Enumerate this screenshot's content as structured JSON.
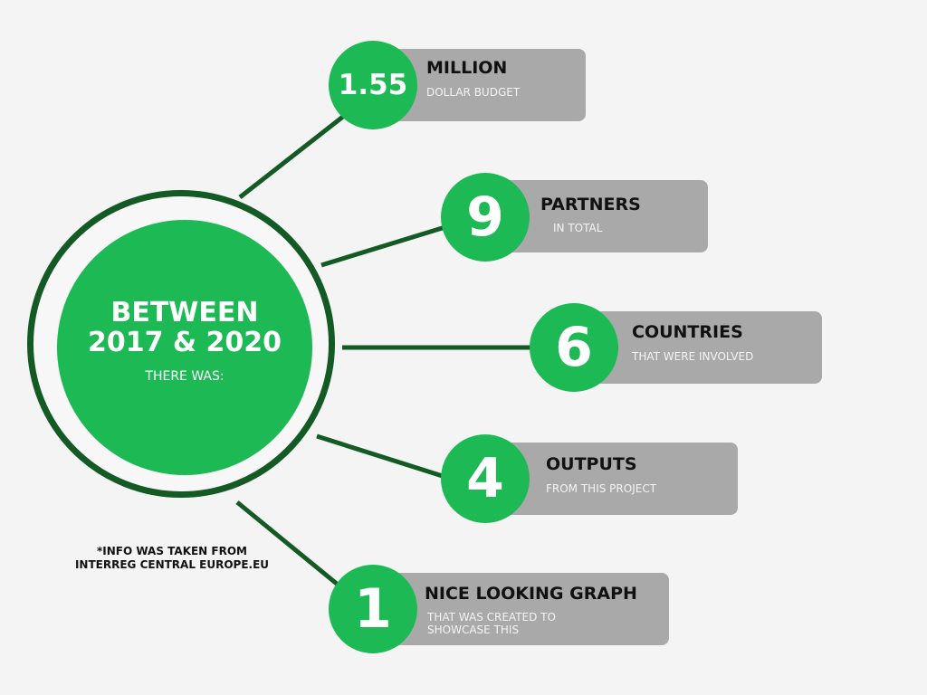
{
  "colors": {
    "background": "#f4f4f4",
    "accent_green": "#1db954",
    "dark_green": "#135a24",
    "card_gray": "#a9a9a9"
  },
  "hub": {
    "line1": "BETWEEN",
    "line2": "2017 & 2020",
    "subtitle": "THERE WAS:"
  },
  "items": [
    {
      "number": "1.55",
      "title": "MILLION",
      "subtitle": "DOLLAR BUDGET"
    },
    {
      "number": "9",
      "title": "PARTNERS",
      "subtitle": "IN TOTAL"
    },
    {
      "number": "6",
      "title": "COUNTRIES",
      "subtitle": "THAT WERE INVOLVED"
    },
    {
      "number": "4",
      "title": "OUTPUTS",
      "subtitle": "FROM THIS PROJECT"
    },
    {
      "number": "1",
      "title": "NICE LOOKING GRAPH",
      "subtitle_line1": "THAT WAS CREATED TO",
      "subtitle_line2": "SHOWCASE THIS"
    }
  ],
  "footnote": {
    "line1": "*INFO WAS TAKEN FROM",
    "line2": "INTERREG CENTRAL EUROPE.EU"
  }
}
